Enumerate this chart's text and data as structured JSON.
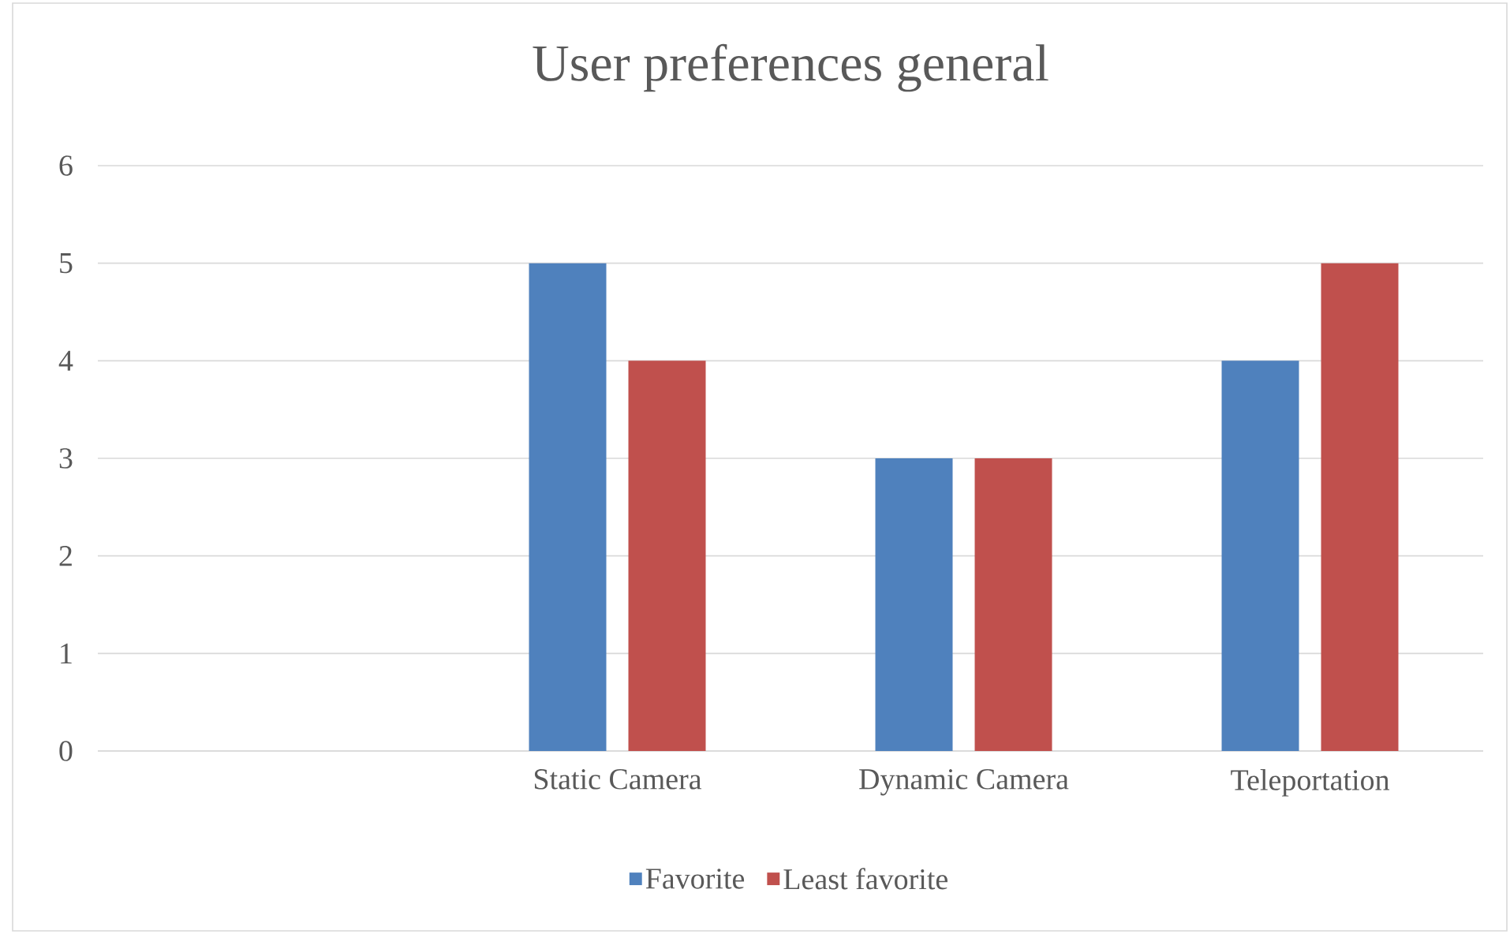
{
  "chart_data": {
    "type": "bar",
    "title": "User preferences general",
    "categories": [
      null,
      "Static Camera",
      "Dynamic Camera",
      "Teleportation"
    ],
    "series": [
      {
        "name": "Favorite",
        "color": "#4f81bd",
        "values": [
          null,
          5,
          3,
          4
        ]
      },
      {
        "name": "Least favorite",
        "color": "#c0504d",
        "values": [
          null,
          4,
          3,
          5
        ]
      }
    ],
    "ylim": [
      0,
      6
    ],
    "yticks": [
      0,
      1,
      2,
      3,
      4,
      5,
      6
    ],
    "grid": "y",
    "legend": "bottom"
  }
}
